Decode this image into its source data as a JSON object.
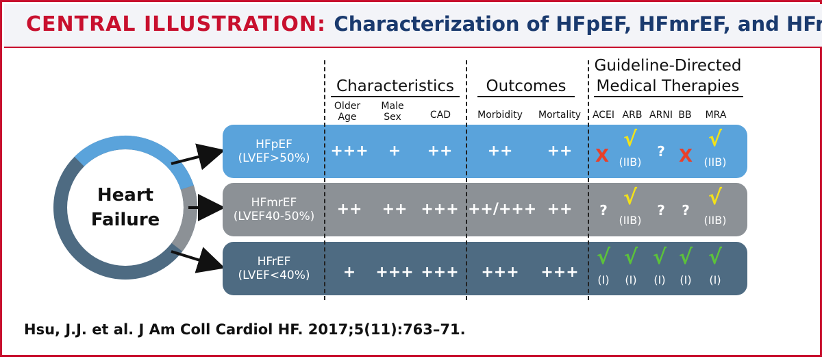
{
  "header": {
    "lead": "CENTRAL ILLUSTRATION:",
    "title": "Characterization of HFpEF, HFmrEF, and HFrEF"
  },
  "circle": {
    "label_line1": "Heart",
    "label_line2": "Failure"
  },
  "groups": {
    "characteristics": "Characteristics",
    "outcomes": "Outcomes",
    "gdmt_line1": "Guideline-Directed",
    "gdmt_line2": "Medical Therapies"
  },
  "subheaders": {
    "older_age_1": "Older",
    "older_age_2": "Age",
    "male_sex_1": "Male",
    "male_sex_2": "Sex",
    "cad": "CAD",
    "morbidity": "Morbidity",
    "mortality": "Mortality",
    "acei": "ACEI",
    "arb": "ARB",
    "arni": "ARNI",
    "bb": "BB",
    "mra": "MRA"
  },
  "rows": [
    {
      "name_line1": "HFpEF",
      "name_line2": "(LVEF>50%)",
      "color": "#5aa3db",
      "older_age": "+++",
      "male_sex": "+",
      "cad": "++",
      "morbidity": "++",
      "mortality": "++",
      "acei": {
        "mark": "X",
        "sub": ""
      },
      "arb": {
        "mark": "√",
        "sub": "(IIB)"
      },
      "arni": {
        "mark": "?",
        "sub": ""
      },
      "bb": {
        "mark": "X",
        "sub": ""
      },
      "mra": {
        "mark": "√",
        "sub": "(IIB)"
      }
    },
    {
      "name_line1": "HFmrEF",
      "name_line2": "(LVEF40-50%)",
      "color": "#8c9196",
      "older_age": "++",
      "male_sex": "++",
      "cad": "+++",
      "morbidity": "++/+++",
      "mortality": "++",
      "acei": {
        "mark": "?",
        "sub": ""
      },
      "arb": {
        "mark": "√",
        "sub": "(IIB)"
      },
      "arni": {
        "mark": "?",
        "sub": ""
      },
      "bb": {
        "mark": "?",
        "sub": ""
      },
      "mra": {
        "mark": "√",
        "sub": "(IIB)"
      }
    },
    {
      "name_line1": "HFrEF",
      "name_line2": "(LVEF<40%)",
      "color": "#4e6b82",
      "older_age": "+",
      "male_sex": "+++",
      "cad": "+++",
      "morbidity": "+++",
      "mortality": "+++",
      "acei": {
        "mark": "√",
        "sub": "(I)"
      },
      "arb": {
        "mark": "√",
        "sub": "(I)"
      },
      "arni": {
        "mark": "√",
        "sub": "(I)"
      },
      "bb": {
        "mark": "√",
        "sub": "(I)"
      },
      "mra": {
        "mark": "√",
        "sub": "(I)"
      }
    }
  ],
  "colors": {
    "check_yellow": "#f2e21a",
    "check_green": "#5cc23a",
    "x_red": "#e8402a",
    "ring_blue": "#5aa3db",
    "ring_gray": "#8c9196",
    "ring_dark": "#4e6b82"
  },
  "citation": "Hsu, J.J. et al. J Am Coll Cardiol HF. 2017;5(11):763–71."
}
